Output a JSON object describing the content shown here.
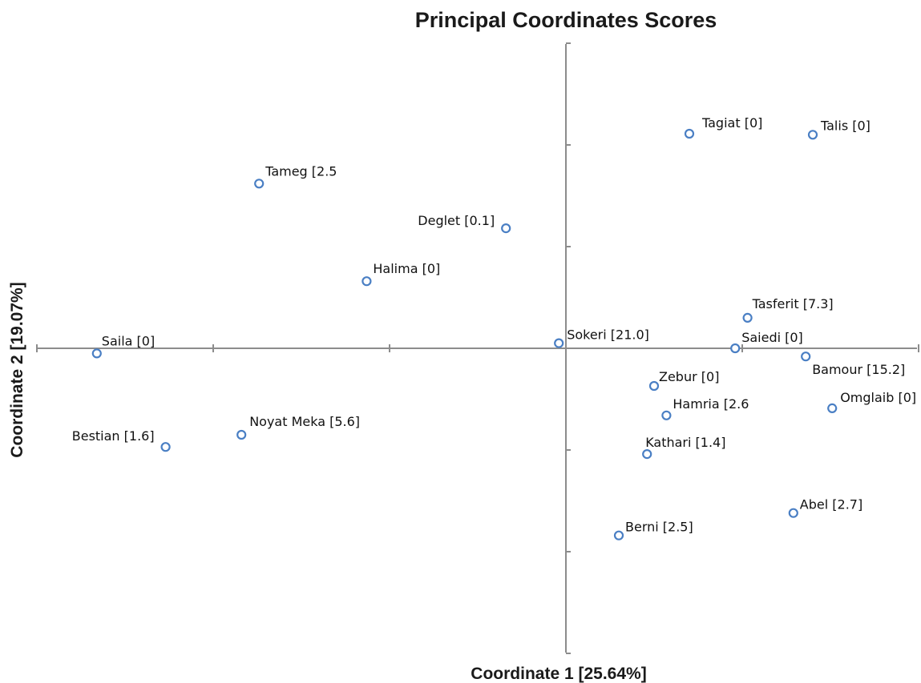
{
  "chart_data": {
    "type": "scatter",
    "title": "Principal Coordinates Scores",
    "xlabel": "Coordinate 1 [25.64%]",
    "ylabel": "Coordinate 2 [19.07%]",
    "xlim": [
      -3.0,
      2.0
    ],
    "ylim": [
      -3.0,
      3.0
    ],
    "grid": false,
    "legend": "none",
    "marker_color": "#4a7fc4",
    "marker_style": "open-circle",
    "points": [
      {
        "label": "Tagiat [0]",
        "x": 0.7,
        "y": 2.11
      },
      {
        "label": "Talis [0]",
        "x": 1.4,
        "y": 2.1
      },
      {
        "label": "Tameg [2.5",
        "x": -1.74,
        "y": 1.62
      },
      {
        "label": "Deglet [0.1]",
        "x": -0.34,
        "y": 1.18
      },
      {
        "label": "Halima [0]",
        "x": -1.13,
        "y": 0.66
      },
      {
        "label": "Tasferit [7.3]",
        "x": 1.03,
        "y": 0.3
      },
      {
        "label": "Sokeri [21.0]",
        "x": -0.04,
        "y": 0.05
      },
      {
        "label": "Saiedi [0]",
        "x": 0.96,
        "y": 0.0
      },
      {
        "label": "Saila [0]",
        "x": -2.66,
        "y": -0.05
      },
      {
        "label": "Bamour [15.2]",
        "x": 1.36,
        "y": -0.08
      },
      {
        "label": "Zebur [0]",
        "x": 0.5,
        "y": -0.37
      },
      {
        "label": "Omglaib [0]",
        "x": 1.51,
        "y": -0.59
      },
      {
        "label": "Hamria [2.6",
        "x": 0.57,
        "y": -0.66
      },
      {
        "label": "Noyat Meka [5.6]",
        "x": -1.84,
        "y": -0.85
      },
      {
        "label": "Bestian [1.6]",
        "x": -2.27,
        "y": -0.97
      },
      {
        "label": "Kathari [1.4]",
        "x": 0.46,
        "y": -1.04
      },
      {
        "label": "Abel [2.7]",
        "x": 1.29,
        "y": -1.62
      },
      {
        "label": "Berni [2.5]",
        "x": 0.3,
        "y": -1.84
      }
    ]
  }
}
